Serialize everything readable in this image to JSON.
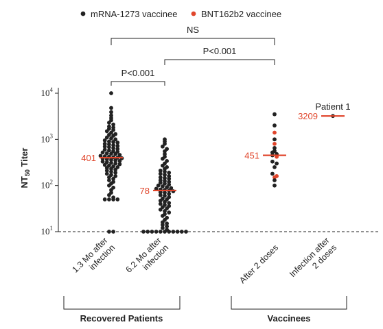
{
  "chart_data": {
    "type": "scatter",
    "yscale": "log",
    "ylim": [
      10,
      10000
    ],
    "ylabel": "NT",
    "ylabel_sub": "50",
    "ylabel_tail": " Titer",
    "yticks": [
      {
        "value": 10,
        "base": "10",
        "exp": "1"
      },
      {
        "value": 100,
        "base": "10",
        "exp": "2"
      },
      {
        "value": 1000,
        "base": "10",
        "exp": "3"
      },
      {
        "value": 10000,
        "base": "10",
        "exp": "4"
      }
    ],
    "threshold": 10,
    "legend": [
      {
        "label": "mRNA-1273 vaccinee",
        "color": "#222222"
      },
      {
        "label": "BNT162b2 vaccinee",
        "color": "#e0452b"
      }
    ],
    "colors": {
      "dark": "#222222",
      "red": "#e0452b",
      "median": "#e0452b"
    },
    "categories": [
      {
        "lines": [
          "1.3 Mo after",
          "infection"
        ]
      },
      {
        "lines": [
          "6.2 Mo after",
          "infection"
        ]
      },
      {
        "lines": [
          "After 2 doses"
        ]
      },
      {
        "lines": [
          "Infection after",
          "2 doses"
        ]
      }
    ],
    "groups": [
      {
        "label": "Recovered Patients",
        "categories": [
          0,
          1
        ]
      },
      {
        "label": "Vaccinees",
        "categories": [
          2,
          3
        ]
      }
    ],
    "comparisons": [
      {
        "label": "P<0.001",
        "from": 0,
        "to": 1
      },
      {
        "label": "P<0.001",
        "from": 1,
        "to": 2
      },
      {
        "label": "NS",
        "from": 0,
        "to": 2
      }
    ],
    "series": [
      {
        "category": 0,
        "median": 401,
        "median_label": "401",
        "points": [
          {
            "v": 10000,
            "c": "dark"
          },
          {
            "v": 4800,
            "c": "dark"
          },
          {
            "v": 3900,
            "c": "dark"
          },
          {
            "v": 3300,
            "c": "dark"
          },
          {
            "v": 2900,
            "c": "dark"
          },
          {
            "v": 2600,
            "c": "dark"
          },
          {
            "v": 2300,
            "c": "dark"
          },
          {
            "v": 2100,
            "c": "dark"
          },
          {
            "v": 1900,
            "c": "dark"
          },
          {
            "v": 1800,
            "c": "dark"
          },
          {
            "v": 1700,
            "c": "dark"
          },
          {
            "v": 1600,
            "c": "dark"
          },
          {
            "v": 1500,
            "c": "dark"
          },
          {
            "v": 1400,
            "c": "dark"
          },
          {
            "v": 1300,
            "c": "dark"
          },
          {
            "v": 1250,
            "c": "dark"
          },
          {
            "v": 1200,
            "c": "dark"
          },
          {
            "v": 1100,
            "c": "dark"
          },
          {
            "v": 1050,
            "c": "dark"
          },
          {
            "v": 1000,
            "c": "dark"
          },
          {
            "v": 950,
            "c": "dark"
          },
          {
            "v": 900,
            "c": "dark"
          },
          {
            "v": 880,
            "c": "dark"
          },
          {
            "v": 850,
            "c": "dark"
          },
          {
            "v": 800,
            "c": "dark"
          },
          {
            "v": 780,
            "c": "dark"
          },
          {
            "v": 750,
            "c": "dark"
          },
          {
            "v": 720,
            "c": "dark"
          },
          {
            "v": 700,
            "c": "dark"
          },
          {
            "v": 680,
            "c": "dark"
          },
          {
            "v": 650,
            "c": "dark"
          },
          {
            "v": 620,
            "c": "dark"
          },
          {
            "v": 600,
            "c": "dark"
          },
          {
            "v": 580,
            "c": "dark"
          },
          {
            "v": 560,
            "c": "dark"
          },
          {
            "v": 540,
            "c": "dark"
          },
          {
            "v": 520,
            "c": "dark"
          },
          {
            "v": 500,
            "c": "dark"
          },
          {
            "v": 490,
            "c": "dark"
          },
          {
            "v": 480,
            "c": "dark"
          },
          {
            "v": 460,
            "c": "dark"
          },
          {
            "v": 440,
            "c": "dark"
          },
          {
            "v": 430,
            "c": "dark"
          },
          {
            "v": 420,
            "c": "dark"
          },
          {
            "v": 410,
            "c": "dark"
          },
          {
            "v": 400,
            "c": "dark"
          },
          {
            "v": 390,
            "c": "dark"
          },
          {
            "v": 380,
            "c": "dark"
          },
          {
            "v": 370,
            "c": "dark"
          },
          {
            "v": 360,
            "c": "dark"
          },
          {
            "v": 350,
            "c": "dark"
          },
          {
            "v": 340,
            "c": "dark"
          },
          {
            "v": 330,
            "c": "dark"
          },
          {
            "v": 320,
            "c": "dark"
          },
          {
            "v": 310,
            "c": "dark"
          },
          {
            "v": 300,
            "c": "dark"
          },
          {
            "v": 290,
            "c": "dark"
          },
          {
            "v": 280,
            "c": "dark"
          },
          {
            "v": 270,
            "c": "dark"
          },
          {
            "v": 260,
            "c": "dark"
          },
          {
            "v": 250,
            "c": "dark"
          },
          {
            "v": 240,
            "c": "dark"
          },
          {
            "v": 230,
            "c": "dark"
          },
          {
            "v": 220,
            "c": "dark"
          },
          {
            "v": 210,
            "c": "dark"
          },
          {
            "v": 200,
            "c": "dark"
          },
          {
            "v": 190,
            "c": "dark"
          },
          {
            "v": 180,
            "c": "dark"
          },
          {
            "v": 170,
            "c": "dark"
          },
          {
            "v": 160,
            "c": "dark"
          },
          {
            "v": 150,
            "c": "dark"
          },
          {
            "v": 140,
            "c": "dark"
          },
          {
            "v": 130,
            "c": "dark"
          },
          {
            "v": 120,
            "c": "dark"
          },
          {
            "v": 110,
            "c": "dark"
          },
          {
            "v": 100,
            "c": "dark"
          },
          {
            "v": 90,
            "c": "dark"
          },
          {
            "v": 80,
            "c": "dark"
          },
          {
            "v": 70,
            "c": "dark"
          },
          {
            "v": 62,
            "c": "dark"
          },
          {
            "v": 55,
            "c": "dark"
          },
          {
            "v": 50,
            "c": "dark"
          },
          {
            "v": 50,
            "c": "dark"
          },
          {
            "v": 50,
            "c": "dark"
          },
          {
            "v": 50,
            "c": "dark"
          },
          {
            "v": 10,
            "c": "dark"
          },
          {
            "v": 10,
            "c": "dark"
          }
        ]
      },
      {
        "category": 1,
        "median": 78,
        "median_label": "78",
        "points": [
          {
            "v": 1000,
            "c": "dark"
          },
          {
            "v": 900,
            "c": "dark"
          },
          {
            "v": 800,
            "c": "dark"
          },
          {
            "v": 700,
            "c": "dark"
          },
          {
            "v": 620,
            "c": "dark"
          },
          {
            "v": 550,
            "c": "dark"
          },
          {
            "v": 480,
            "c": "dark"
          },
          {
            "v": 420,
            "c": "dark"
          },
          {
            "v": 380,
            "c": "dark"
          },
          {
            "v": 340,
            "c": "dark"
          },
          {
            "v": 300,
            "c": "dark"
          },
          {
            "v": 270,
            "c": "dark"
          },
          {
            "v": 250,
            "c": "dark"
          },
          {
            "v": 230,
            "c": "dark"
          },
          {
            "v": 210,
            "c": "dark"
          },
          {
            "v": 200,
            "c": "dark"
          },
          {
            "v": 190,
            "c": "dark"
          },
          {
            "v": 180,
            "c": "dark"
          },
          {
            "v": 170,
            "c": "dark"
          },
          {
            "v": 160,
            "c": "dark"
          },
          {
            "v": 150,
            "c": "dark"
          },
          {
            "v": 145,
            "c": "dark"
          },
          {
            "v": 140,
            "c": "dark"
          },
          {
            "v": 130,
            "c": "dark"
          },
          {
            "v": 125,
            "c": "dark"
          },
          {
            "v": 120,
            "c": "dark"
          },
          {
            "v": 115,
            "c": "dark"
          },
          {
            "v": 110,
            "c": "dark"
          },
          {
            "v": 105,
            "c": "dark"
          },
          {
            "v": 100,
            "c": "dark"
          },
          {
            "v": 96,
            "c": "dark"
          },
          {
            "v": 92,
            "c": "dark"
          },
          {
            "v": 88,
            "c": "dark"
          },
          {
            "v": 85,
            "c": "dark"
          },
          {
            "v": 82,
            "c": "dark"
          },
          {
            "v": 80,
            "c": "dark"
          },
          {
            "v": 78,
            "c": "dark"
          },
          {
            "v": 75,
            "c": "dark"
          },
          {
            "v": 72,
            "c": "dark"
          },
          {
            "v": 70,
            "c": "dark"
          },
          {
            "v": 66,
            "c": "dark"
          },
          {
            "v": 62,
            "c": "dark"
          },
          {
            "v": 60,
            "c": "dark"
          },
          {
            "v": 56,
            "c": "dark"
          },
          {
            "v": 52,
            "c": "dark"
          },
          {
            "v": 50,
            "c": "dark"
          },
          {
            "v": 47,
            "c": "dark"
          },
          {
            "v": 44,
            "c": "dark"
          },
          {
            "v": 42,
            "c": "dark"
          },
          {
            "v": 40,
            "c": "dark"
          },
          {
            "v": 38,
            "c": "dark"
          },
          {
            "v": 36,
            "c": "dark"
          },
          {
            "v": 34,
            "c": "dark"
          },
          {
            "v": 32,
            "c": "dark"
          },
          {
            "v": 30,
            "c": "dark"
          },
          {
            "v": 28,
            "c": "dark"
          },
          {
            "v": 26,
            "c": "dark"
          },
          {
            "v": 24,
            "c": "dark"
          },
          {
            "v": 22,
            "c": "dark"
          },
          {
            "v": 20,
            "c": "dark"
          },
          {
            "v": 18,
            "c": "dark"
          },
          {
            "v": 16,
            "c": "dark"
          },
          {
            "v": 15,
            "c": "dark"
          },
          {
            "v": 14,
            "c": "dark"
          },
          {
            "v": 13,
            "c": "dark"
          },
          {
            "v": 12,
            "c": "dark"
          },
          {
            "v": 11,
            "c": "dark"
          },
          {
            "v": 10,
            "c": "dark"
          },
          {
            "v": 10,
            "c": "dark"
          },
          {
            "v": 10,
            "c": "dark"
          },
          {
            "v": 10,
            "c": "dark"
          },
          {
            "v": 10,
            "c": "dark"
          },
          {
            "v": 10,
            "c": "dark"
          },
          {
            "v": 10,
            "c": "dark"
          },
          {
            "v": 10,
            "c": "dark"
          },
          {
            "v": 10,
            "c": "dark"
          },
          {
            "v": 10,
            "c": "dark"
          },
          {
            "v": 10,
            "c": "dark"
          }
        ]
      },
      {
        "category": 2,
        "median": 451,
        "median_label": "451",
        "points": [
          {
            "v": 3500,
            "c": "dark"
          },
          {
            "v": 2000,
            "c": "dark"
          },
          {
            "v": 1400,
            "c": "red"
          },
          {
            "v": 1000,
            "c": "dark"
          },
          {
            "v": 800,
            "c": "red"
          },
          {
            "v": 650,
            "c": "dark"
          },
          {
            "v": 560,
            "c": "dark"
          },
          {
            "v": 520,
            "c": "dark"
          },
          {
            "v": 480,
            "c": "dark"
          },
          {
            "v": 451,
            "c": "dark"
          },
          {
            "v": 420,
            "c": "red"
          },
          {
            "v": 330,
            "c": "dark"
          },
          {
            "v": 300,
            "c": "dark"
          },
          {
            "v": 250,
            "c": "dark"
          },
          {
            "v": 180,
            "c": "dark"
          },
          {
            "v": 160,
            "c": "red"
          },
          {
            "v": 150,
            "c": "red"
          },
          {
            "v": 130,
            "c": "dark"
          },
          {
            "v": 100,
            "c": "dark"
          }
        ]
      },
      {
        "category": 3,
        "median": 3209,
        "median_label": "3209",
        "annotation": "Patient 1",
        "points": [
          {
            "v": 3209,
            "c": "dark"
          }
        ]
      }
    ]
  }
}
